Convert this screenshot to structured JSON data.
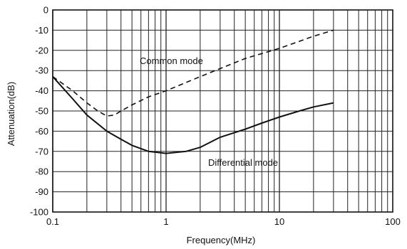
{
  "chart_data": {
    "type": "line",
    "title": "",
    "xlabel": "Frequency(MHz)",
    "ylabel": "Attenuation(dB)",
    "xscale": "log",
    "xlim": [
      0.1,
      100
    ],
    "ylim": [
      -100,
      0
    ],
    "grid": true,
    "x_ticks": [
      "0.1",
      "1",
      "10",
      "100"
    ],
    "y_ticks": [
      "0",
      "-10",
      "-20",
      "-30",
      "-40",
      "-50",
      "-60",
      "-70",
      "-80",
      "-90",
      "-100"
    ],
    "series": [
      {
        "name": "Common mode",
        "style": "dashed",
        "x": [
          0.1,
          0.15,
          0.2,
          0.25,
          0.3,
          0.35,
          0.4,
          0.5,
          0.7,
          1,
          2,
          3,
          5,
          10,
          20,
          30
        ],
        "y": [
          -33,
          -40,
          -46,
          -50,
          -52.5,
          -52,
          -50,
          -47,
          -43,
          -40,
          -33,
          -29,
          -24,
          -19,
          -13,
          -10
        ]
      },
      {
        "name": "Differential mode",
        "style": "solid",
        "x": [
          0.1,
          0.15,
          0.2,
          0.3,
          0.4,
          0.5,
          0.7,
          1,
          1.5,
          2,
          3,
          5,
          7,
          10,
          15,
          20,
          30
        ],
        "y": [
          -33,
          -44,
          -52,
          -60,
          -64,
          -67,
          -70,
          -71,
          -70,
          -68,
          -63,
          -59,
          -56,
          -53,
          -50,
          -48,
          -46
        ]
      }
    ],
    "annotations": [
      "Common mode",
      "Differential mode"
    ]
  }
}
